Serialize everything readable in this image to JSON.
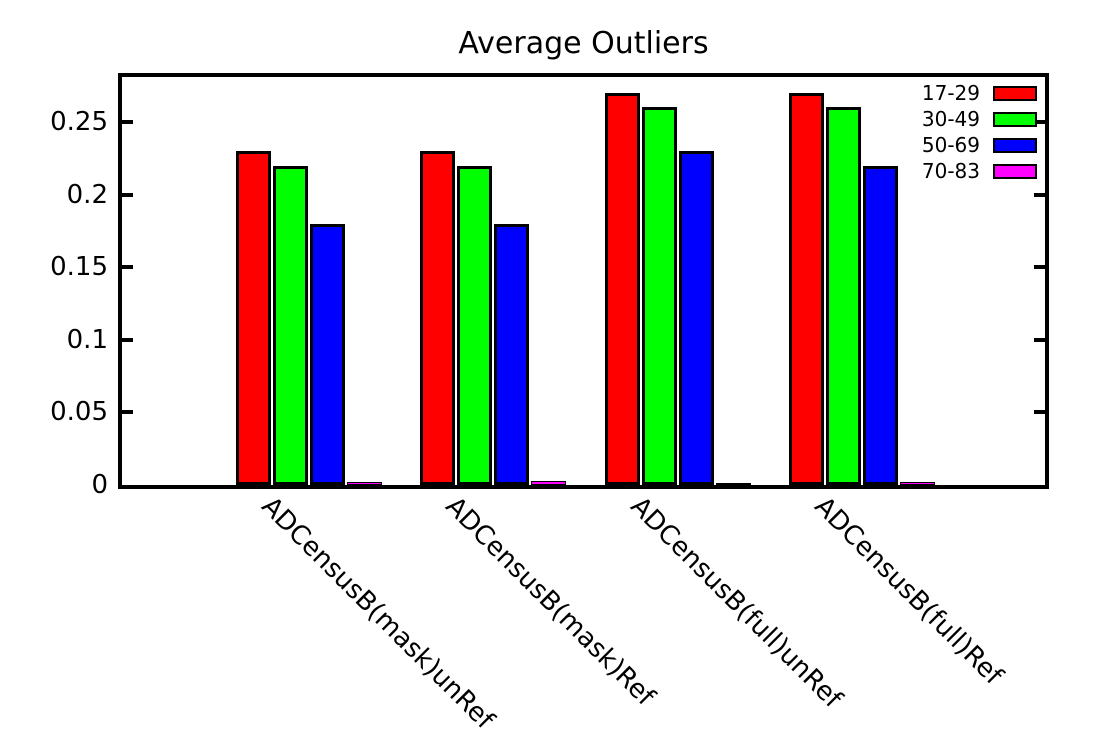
{
  "chart_data": {
    "type": "bar",
    "title": "Average Outliers",
    "categories": [
      "ADCensusB(mask)unRef",
      "ADCensusB(mask)Ref",
      "ADCensusB(full)unRef",
      "ADCensusB(full)Ref"
    ],
    "series": [
      {
        "name": "17-29",
        "color": "#ff0000",
        "values": [
          0.23,
          0.23,
          0.27,
          0.27
        ]
      },
      {
        "name": "30-49",
        "color": "#00ff00",
        "values": [
          0.22,
          0.22,
          0.26,
          0.26
        ]
      },
      {
        "name": "50-69",
        "color": "#0000ff",
        "values": [
          0.18,
          0.18,
          0.23,
          0.22
        ]
      },
      {
        "name": "70-83",
        "color": "#ff00ff",
        "values": [
          0.002,
          0.003,
          0.0005,
          0.002
        ]
      }
    ],
    "ylim": [
      0,
      0.281
    ],
    "yticks": [
      0,
      0.05,
      0.1,
      0.15,
      0.2,
      0.25
    ],
    "ytick_labels": [
      "0",
      "0.05",
      "0.1",
      "0.15",
      "0.2",
      "0.25"
    ],
    "xlabel": "",
    "ylabel": "",
    "grid": false,
    "legend_position": "top-right",
    "bar_edge_color": "#000000",
    "background_color": "#ffffff"
  }
}
